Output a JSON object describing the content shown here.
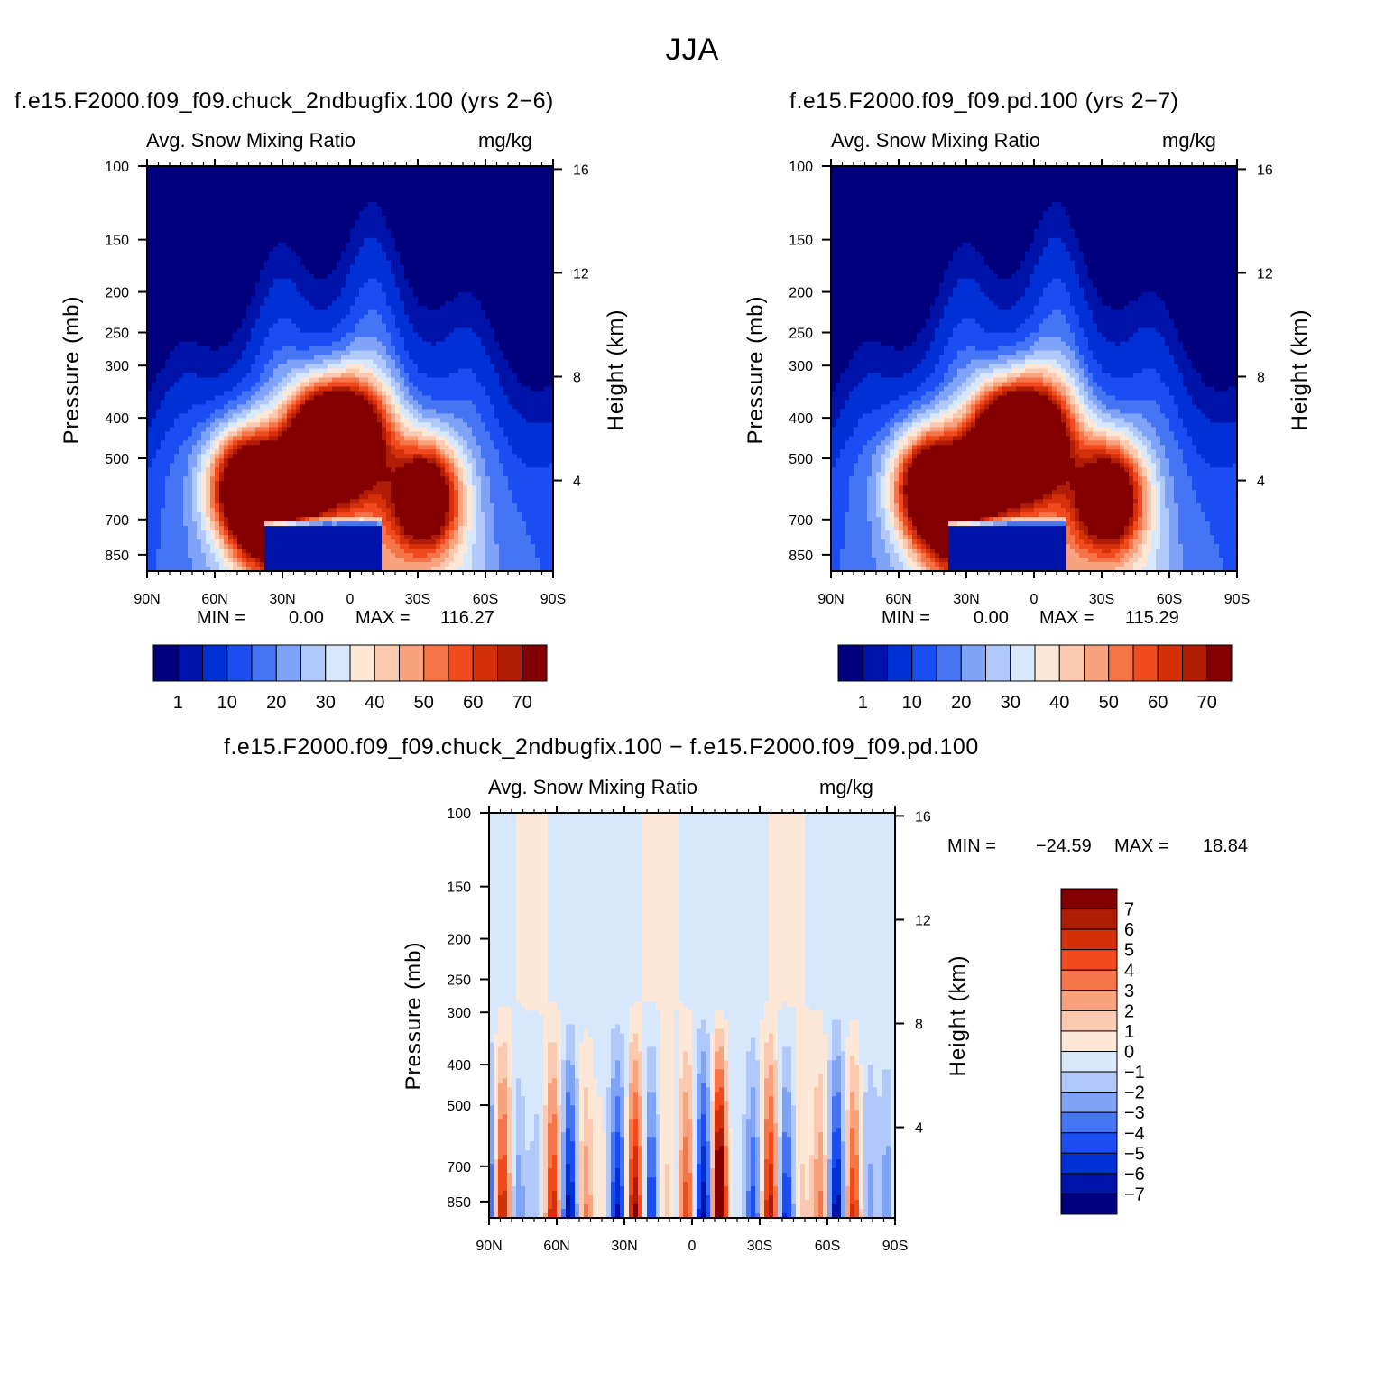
{
  "page": {
    "title": "JJA",
    "panels": [
      {
        "case": "f.e15.F2000.f09_f09.chuck_2ndbugfix.100 (yrs 2−6)",
        "variable": "Avg. Snow Mixing Ratio",
        "units": "mg/kg",
        "min_label": "MIN =",
        "min_value": "0.00",
        "max_label": "MAX =",
        "max_value": "116.27"
      },
      {
        "case": "f.e15.F2000.f09_f09.pd.100 (yrs 2−7)",
        "variable": "Avg. Snow Mixing Ratio",
        "units": "mg/kg",
        "min_label": "MIN =",
        "min_value": "0.00",
        "max_label": "MAX =",
        "max_value": "115.29"
      },
      {
        "case": "f.e15.F2000.f09_f09.chuck_2ndbugfix.100 − f.e15.F2000.f09_f09.pd.100",
        "variable": "Avg. Snow Mixing Ratio",
        "units": "mg/kg",
        "min_label": "MIN =",
        "min_value": "−24.59",
        "max_label": "MAX =",
        "max_value": "18.84"
      }
    ],
    "y_label": "Pressure (mb)",
    "y2_label": "Height (km)"
  },
  "chart_data": [
    {
      "type": "heatmap",
      "title": "f.e15.F2000.f09_f09.chuck_2ndbugfix.100 (yrs 2−6)",
      "subtitle": "Avg. Snow Mixing Ratio",
      "units": "mg/kg",
      "xlabel": "",
      "ylabel": "Pressure (mb)",
      "y2label": "Height (km)",
      "x_ticks": [
        "90N",
        "60N",
        "30N",
        "0",
        "30S",
        "60S",
        "90S"
      ],
      "y_ticks": [
        "100",
        "150",
        "200",
        "250",
        "300",
        "400",
        "500",
        "700",
        "850"
      ],
      "y2_ticks": [
        "16",
        "12",
        "8",
        "4"
      ],
      "ylim": [
        1000,
        100
      ],
      "colorbar": [
        "1",
        "10",
        "20",
        "30",
        "40",
        "50",
        "60",
        "70"
      ],
      "min": 0.0,
      "max": 116.27,
      "blobs": [
        {
          "lat": 12,
          "p": 470,
          "value": 110
        },
        {
          "lat": 48,
          "p": 580,
          "value": 65
        },
        {
          "lat": 35,
          "p": 660,
          "value": 72
        },
        {
          "lat": -4,
          "p": 440,
          "value": 50
        },
        {
          "lat": -33,
          "p": 620,
          "value": 75
        }
      ]
    },
    {
      "type": "heatmap",
      "title": "f.e15.F2000.f09_f09.pd.100 (yrs 2−7)",
      "subtitle": "Avg. Snow Mixing Ratio",
      "units": "mg/kg",
      "xlabel": "",
      "ylabel": "Pressure (mb)",
      "y2label": "Height (km)",
      "x_ticks": [
        "90N",
        "60N",
        "30N",
        "0",
        "30S",
        "60S",
        "90S"
      ],
      "y_ticks": [
        "100",
        "150",
        "200",
        "250",
        "300",
        "400",
        "500",
        "700",
        "850"
      ],
      "y2_ticks": [
        "16",
        "12",
        "8",
        "4"
      ],
      "ylim": [
        1000,
        100
      ],
      "colorbar": [
        "1",
        "10",
        "20",
        "30",
        "40",
        "50",
        "60",
        "70"
      ],
      "min": 0.0,
      "max": 115.29,
      "blobs": [
        {
          "lat": 12,
          "p": 470,
          "value": 108
        },
        {
          "lat": 48,
          "p": 580,
          "value": 63
        },
        {
          "lat": 35,
          "p": 660,
          "value": 70
        },
        {
          "lat": -4,
          "p": 440,
          "value": 52
        },
        {
          "lat": -33,
          "p": 620,
          "value": 76
        }
      ]
    },
    {
      "type": "heatmap",
      "title": "f.e15.F2000.f09_f09.chuck_2ndbugfix.100 − f.e15.F2000.f09_f09.pd.100",
      "subtitle": "Avg. Snow Mixing Ratio",
      "units": "mg/kg",
      "xlabel": "",
      "ylabel": "Pressure (mb)",
      "y2label": "Height (km)",
      "x_ticks": [
        "90N",
        "60N",
        "30N",
        "0",
        "30S",
        "60S",
        "90S"
      ],
      "y_ticks": [
        "100",
        "150",
        "200",
        "250",
        "300",
        "400",
        "500",
        "700",
        "850"
      ],
      "y2_ticks": [
        "16",
        "12",
        "8",
        "4"
      ],
      "ylim": [
        1000,
        100
      ],
      "colorbar": [
        "7",
        "6",
        "5",
        "4",
        "3",
        "2",
        "1",
        "0",
        "−1",
        "−2",
        "−3",
        "−4",
        "−5",
        "−6",
        "−7"
      ],
      "min": -24.59,
      "max": 18.84
    }
  ],
  "colors": {
    "seq": [
      "#00007f",
      "#0013a8",
      "#0030d6",
      "#1a4df2",
      "#4575f5",
      "#7fa3f7",
      "#b0c8fa",
      "#d8e8fc",
      "#fde8d8",
      "#fbc8b0",
      "#f8a27e",
      "#f57548",
      "#f24a1f",
      "#d4300a",
      "#b01c05",
      "#840000"
    ],
    "div": [
      "#00007f",
      "#0013a8",
      "#0030d6",
      "#1a4df2",
      "#4575f5",
      "#7fa3f7",
      "#b0c8fa",
      "#d8e8fc",
      "#fde8d8",
      "#fbc8b0",
      "#f8a27e",
      "#f57548",
      "#f24a1f",
      "#d4300a",
      "#b01c05",
      "#840000"
    ]
  }
}
